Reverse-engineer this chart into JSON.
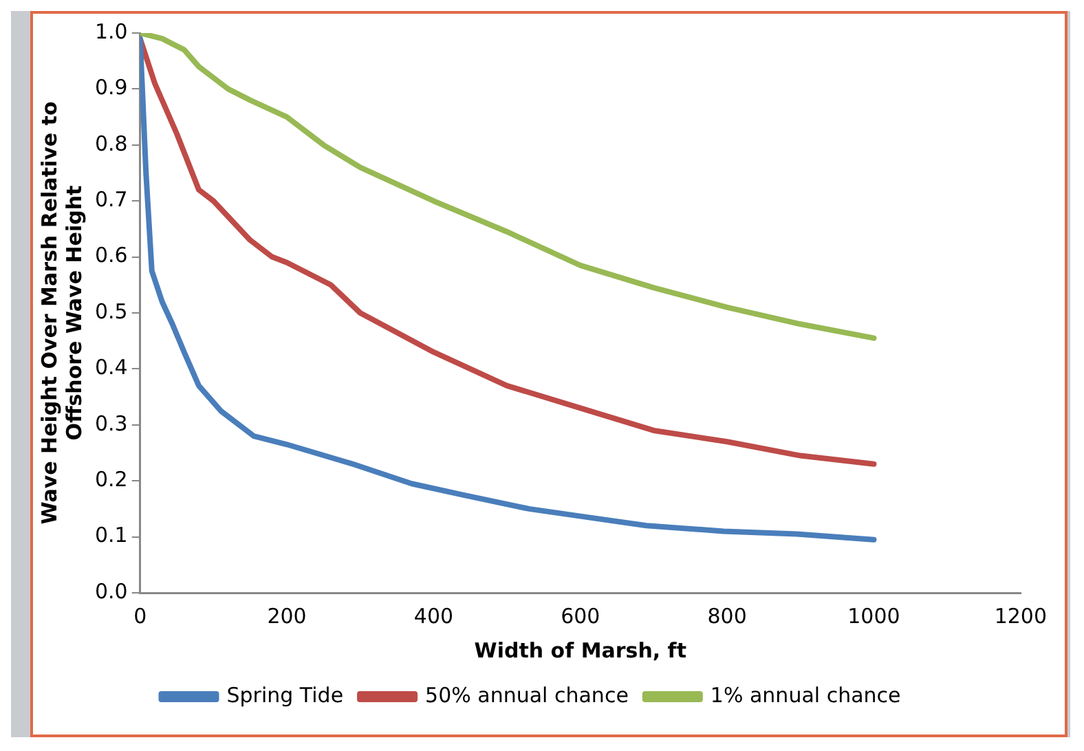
{
  "chart_data": {
    "type": "line",
    "xlabel": "Width of Marsh, ft",
    "ylabel": "Wave Height Over Marsh Relative to Offshore Wave Height",
    "xlim": [
      0,
      1200
    ],
    "xticks": [
      0,
      200,
      400,
      600,
      800,
      1000,
      1200
    ],
    "ylim": [
      0,
      1
    ],
    "yticks": [
      {
        "value": 0,
        "label": "0.0"
      },
      0.1,
      0.2,
      0.3,
      0.4,
      0.5,
      0.6,
      0.7,
      0.8,
      0.9,
      {
        "value": 1,
        "label": "1.0"
      }
    ],
    "legend": "bottom",
    "grid": false,
    "marker": "none",
    "line_style": "solid",
    "series": [
      {
        "name": "Spring Tide",
        "color": "#4a7ebb",
        "x": [
          0,
          8,
          16,
          30,
          44,
          60,
          80,
          110,
          155,
          200,
          290,
          370,
          440,
          530,
          610,
          690,
          795,
          895,
          1000
        ],
        "values": [
          0.99,
          0.75,
          0.575,
          0.52,
          0.48,
          0.43,
          0.37,
          0.325,
          0.28,
          0.265,
          0.23,
          0.195,
          0.175,
          0.15,
          0.135,
          0.12,
          0.11,
          0.105,
          0.095
        ]
      },
      {
        "name": "50% annual chance",
        "color": "#be4b48",
        "x": [
          0,
          20,
          50,
          80,
          100,
          150,
          180,
          200,
          260,
          300,
          400,
          450,
          500,
          600,
          700,
          800,
          900,
          1000
        ],
        "values": [
          0.99,
          0.91,
          0.82,
          0.72,
          0.7,
          0.63,
          0.6,
          0.59,
          0.55,
          0.5,
          0.43,
          0.4,
          0.37,
          0.33,
          0.29,
          0.27,
          0.245,
          0.23
        ]
      },
      {
        "name": "1% annual chance",
        "color": "#98b954",
        "x": [
          0,
          30,
          60,
          80,
          120,
          150,
          200,
          250,
          300,
          400,
          500,
          600,
          700,
          800,
          900,
          1000
        ],
        "values": [
          1,
          0.99,
          0.97,
          0.94,
          0.9,
          0.88,
          0.85,
          0.8,
          0.76,
          0.7,
          0.645,
          0.585,
          0.545,
          0.51,
          0.48,
          0.455
        ]
      }
    ]
  }
}
